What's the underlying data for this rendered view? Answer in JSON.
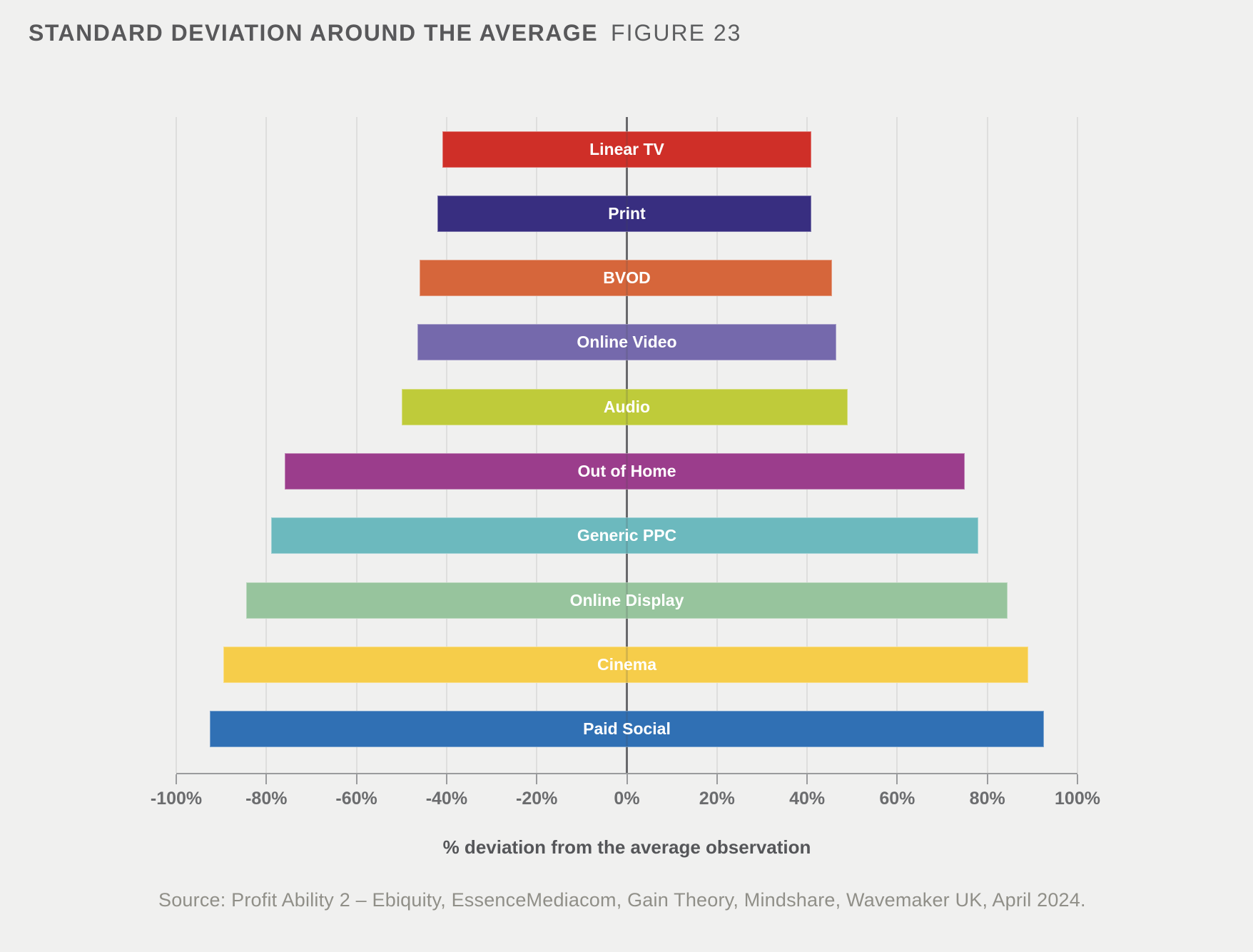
{
  "title": {
    "main": "STANDARD DEVIATION AROUND THE AVERAGE",
    "figure": "FIGURE 23"
  },
  "source": "Source: Profit Ability 2 – Ebiquity, EssenceMediacom, Gain Theory, Mindshare, Wavemaker UK, April 2024.",
  "chart_data": {
    "type": "bar",
    "subtype": "horizontal-diverging-range",
    "title": "STANDARD DEVIATION AROUND THE AVERAGE",
    "figure_label": "FIGURE 23",
    "xlabel": "% deviation from the average observation",
    "xlim": [
      -100,
      100
    ],
    "x_tick_values": [
      -100,
      -80,
      -60,
      -40,
      -20,
      0,
      20,
      40,
      60,
      80,
      100
    ],
    "x_tick_labels": [
      "-100%",
      "-80%",
      "-60%",
      "-40%",
      "-20%",
      "0%",
      "20%",
      "40%",
      "60%",
      "80%",
      "100%"
    ],
    "grid": "vertical gridlines at 20% steps, darker line at 0%",
    "legend": "none",
    "categories": [
      "Linear TV",
      "Print",
      "BVOD",
      "Online Video",
      "Audio",
      "Out of Home",
      "Generic PPC",
      "Online Display",
      "Cinema",
      "Paid Social"
    ],
    "bars": [
      {
        "label": "Linear TV",
        "from_percent": -41,
        "to_percent": 41,
        "color": "#cf2f28"
      },
      {
        "label": "Print",
        "from_percent": -42,
        "to_percent": 41,
        "color": "#382e80"
      },
      {
        "label": "BVOD",
        "from_percent": -46,
        "to_percent": 45.5,
        "color": "#d6663b"
      },
      {
        "label": "Online Video",
        "from_percent": -46.5,
        "to_percent": 46.5,
        "color": "#7569ac"
      },
      {
        "label": "Audio",
        "from_percent": -50,
        "to_percent": 49,
        "color": "#bfcb3a"
      },
      {
        "label": "Out of Home",
        "from_percent": -76,
        "to_percent": 75,
        "color": "#9b3d8c"
      },
      {
        "label": "Generic PPC",
        "from_percent": -79,
        "to_percent": 78,
        "color": "#6cb9be"
      },
      {
        "label": "Online Display",
        "from_percent": -84.5,
        "to_percent": 84.5,
        "color": "#97c49d"
      },
      {
        "label": "Cinema",
        "from_percent": -89.5,
        "to_percent": 89,
        "color": "#f6cd4a"
      },
      {
        "label": "Paid Social",
        "from_percent": -92.5,
        "to_percent": 92.5,
        "color": "#3070b4"
      }
    ],
    "colors": {
      "background": "#f0f0ef",
      "gridline": "#dededd",
      "zero_line": "#6f7072",
      "axis_line": "#9a9b9d",
      "bar_label_text": "#ffffff",
      "tick_label_text": "#6b6c6e",
      "title_text": "#58585a",
      "source_text": "#908f88"
    }
  }
}
